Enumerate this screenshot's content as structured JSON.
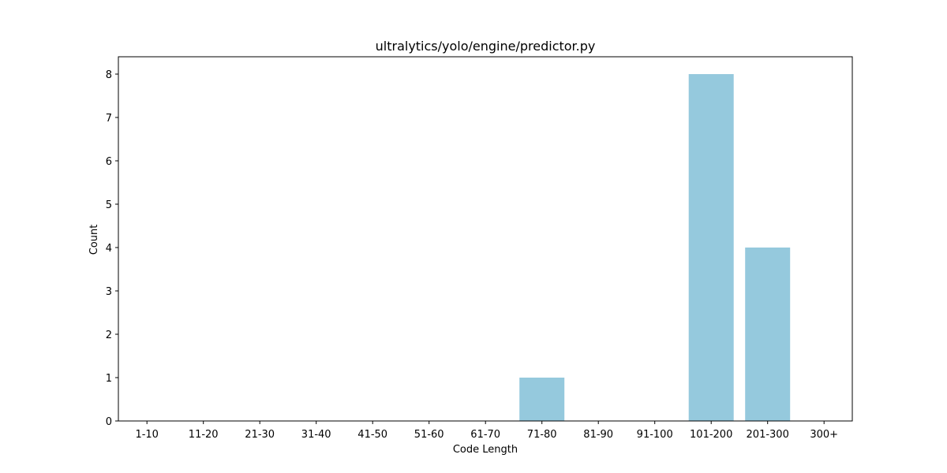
{
  "chart_data": {
    "type": "bar",
    "title": "ultralytics/yolo/engine/predictor.py",
    "xlabel": "Code Length",
    "ylabel": "Count",
    "categories": [
      "1-10",
      "11-20",
      "21-30",
      "31-40",
      "41-50",
      "51-60",
      "61-70",
      "71-80",
      "81-90",
      "91-100",
      "101-200",
      "201-300",
      "300+"
    ],
    "values": [
      0,
      0,
      0,
      0,
      0,
      0,
      0,
      1,
      0,
      0,
      8,
      4,
      0
    ],
    "ylim": [
      0,
      8.4
    ],
    "yticks": [
      0,
      1,
      2,
      3,
      4,
      5,
      6,
      7,
      8
    ],
    "grid": false,
    "bar_color": "#95c9dd"
  }
}
